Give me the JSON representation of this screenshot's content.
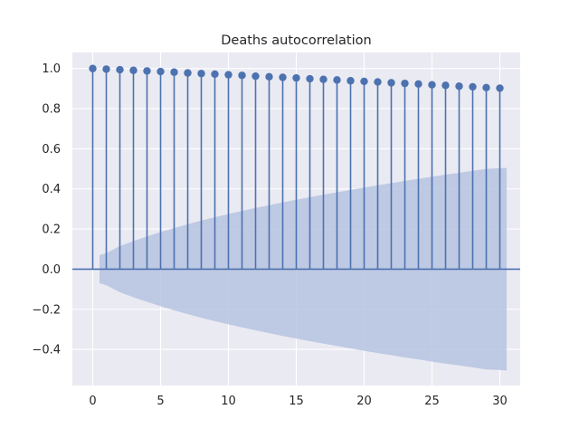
{
  "chart_data": {
    "type": "stem",
    "title": "Deaths autocorrelation",
    "xlabel": "",
    "ylabel": "",
    "xlim": [
      -1.5,
      31.5
    ],
    "ylim": [
      -0.58,
      1.08
    ],
    "x_ticks": [
      0,
      5,
      10,
      15,
      20,
      25,
      30
    ],
    "y_ticks": [
      -0.4,
      -0.2,
      0.0,
      0.2,
      0.4,
      0.6,
      0.8,
      1.0
    ],
    "y_tick_labels": [
      "−0.4",
      "−0.2",
      "0.0",
      "0.2",
      "0.4",
      "0.6",
      "0.8",
      "1.0"
    ],
    "lags": [
      0,
      1,
      2,
      3,
      4,
      5,
      6,
      7,
      8,
      9,
      10,
      11,
      12,
      13,
      14,
      15,
      16,
      17,
      18,
      19,
      20,
      21,
      22,
      23,
      24,
      25,
      26,
      27,
      28,
      29,
      30
    ],
    "values": [
      1.0,
      0.997,
      0.994,
      0.991,
      0.988,
      0.985,
      0.982,
      0.978,
      0.975,
      0.972,
      0.969,
      0.966,
      0.962,
      0.959,
      0.956,
      0.953,
      0.949,
      0.946,
      0.943,
      0.939,
      0.936,
      0.933,
      0.929,
      0.926,
      0.923,
      0.919,
      0.916,
      0.912,
      0.909,
      0.905,
      0.902
    ],
    "confidence_band": {
      "x": [
        0.5,
        1,
        2,
        3,
        4,
        5,
        6,
        7,
        8,
        9,
        10,
        11,
        12,
        13,
        14,
        15,
        16,
        17,
        18,
        19,
        20,
        21,
        22,
        23,
        24,
        25,
        26,
        27,
        28,
        29,
        30,
        30.5
      ],
      "upper": [
        0.07,
        0.08,
        0.115,
        0.14,
        0.163,
        0.185,
        0.205,
        0.224,
        0.242,
        0.259,
        0.275,
        0.29,
        0.305,
        0.319,
        0.333,
        0.346,
        0.359,
        0.371,
        0.383,
        0.395,
        0.407,
        0.418,
        0.429,
        0.44,
        0.45,
        0.461,
        0.471,
        0.48,
        0.49,
        0.5,
        0.503,
        0.505
      ]
    },
    "grid": true,
    "colors": {
      "stem": "#4c72b0",
      "band": "#b6c3e0",
      "background": "#eaeaf2",
      "grid": "#ffffff"
    }
  }
}
